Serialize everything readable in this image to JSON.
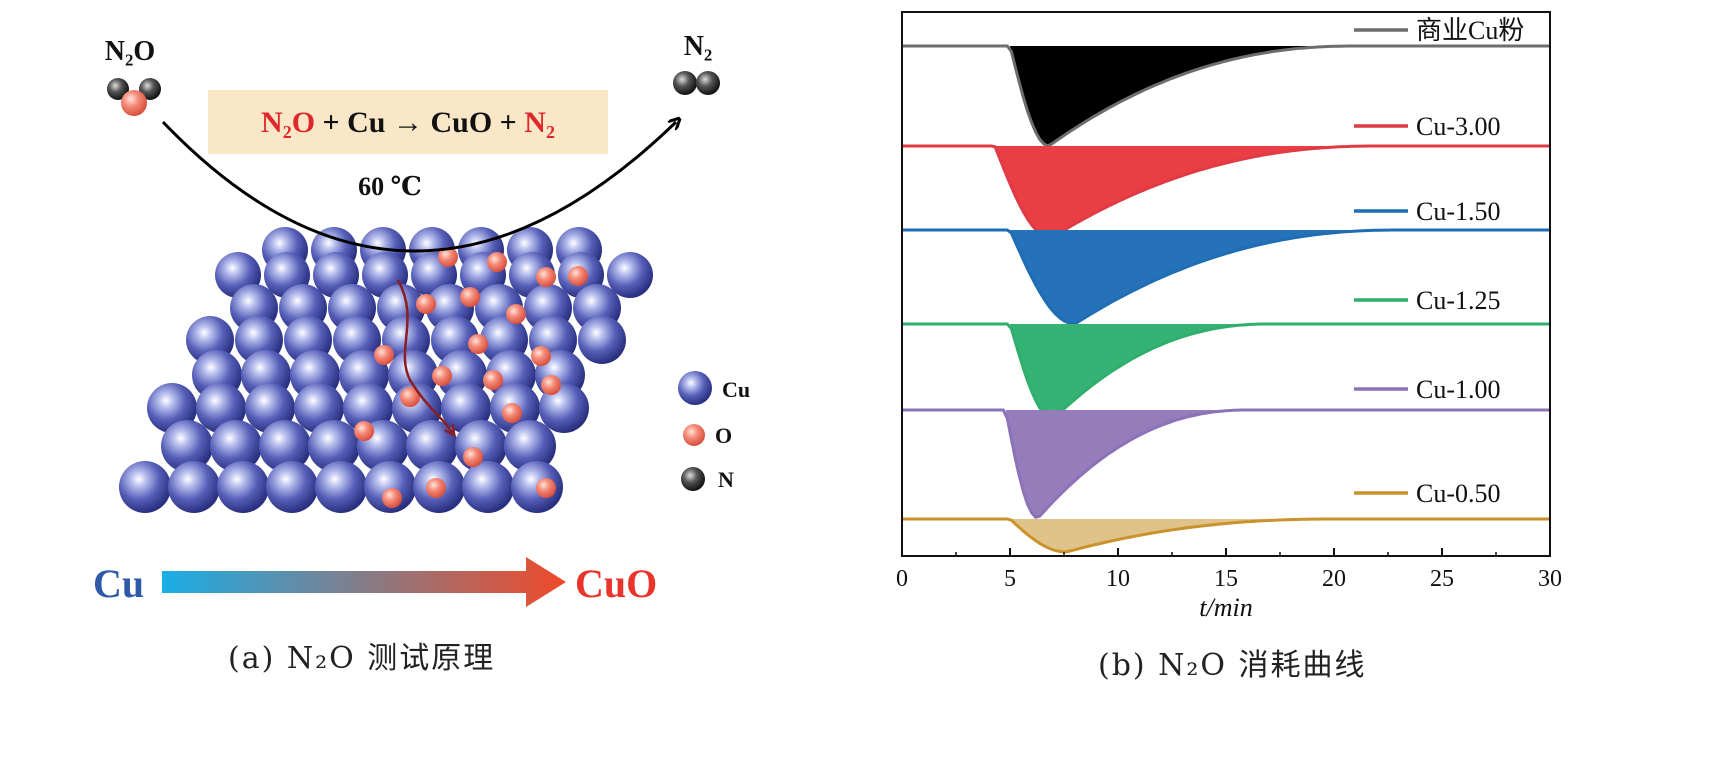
{
  "panel_a": {
    "reactant_label": "N₂O",
    "product_label": "N₂",
    "equation": {
      "reactant": "N₂O",
      "middle": " + Cu → CuO + ",
      "product": "N₂"
    },
    "temperature": "60 ℃",
    "legend": [
      {
        "label": "Cu",
        "color": "#3f4aa0"
      },
      {
        "label": "O",
        "color": "#f08070"
      },
      {
        "label": "N",
        "color": "#333333"
      }
    ],
    "gradient": {
      "start_label": "Cu",
      "end_label": "CuO",
      "start_color": "#1aaee6",
      "end_color": "#f04a2a"
    },
    "caption": "(a) N₂O 测试原理"
  },
  "chart_data": {
    "type": "line",
    "xlabel": "t/min",
    "xlim": [
      0,
      30
    ],
    "xticks": [
      0,
      5,
      10,
      15,
      20,
      25,
      30
    ],
    "grid": false,
    "legend_placement": "inline-right",
    "series": [
      {
        "name": "商业Cu粉",
        "color": "#6d6d6d",
        "fill": "#000000",
        "baseline": 46,
        "depth": 100,
        "onset": 5.0,
        "min_x": 6.8,
        "end_x": 21
      },
      {
        "name": "Cu-3.00",
        "color": "#e03a44",
        "fill": "#ea3e45",
        "baseline": 146,
        "depth": 92,
        "onset": 4.3,
        "min_x": 6.9,
        "end_x": 22
      },
      {
        "name": "Cu-1.50",
        "color": "#1f6db4",
        "fill": "#2672b8",
        "baseline": 230,
        "depth": 94,
        "onset": 5.0,
        "min_x": 8.0,
        "end_x": 23
      },
      {
        "name": "Cu-1.25",
        "color": "#2fae6c",
        "fill": "#35b374",
        "baseline": 324,
        "depth": 95,
        "onset": 5.0,
        "min_x": 7.0,
        "end_x": 17
      },
      {
        "name": "Cu-1.00",
        "color": "#8c72b8",
        "fill": "#957cbb",
        "baseline": 410,
        "depth": 108,
        "onset": 4.8,
        "min_x": 6.3,
        "end_x": 16
      },
      {
        "name": "Cu-0.50",
        "color": "#c9922a",
        "fill": "#e0c38a",
        "baseline": 519,
        "depth": 33,
        "onset": 5.0,
        "min_x": 7.6,
        "end_x": 20
      }
    ]
  },
  "panel_b": {
    "caption": "(b) N₂O 消耗曲线"
  }
}
